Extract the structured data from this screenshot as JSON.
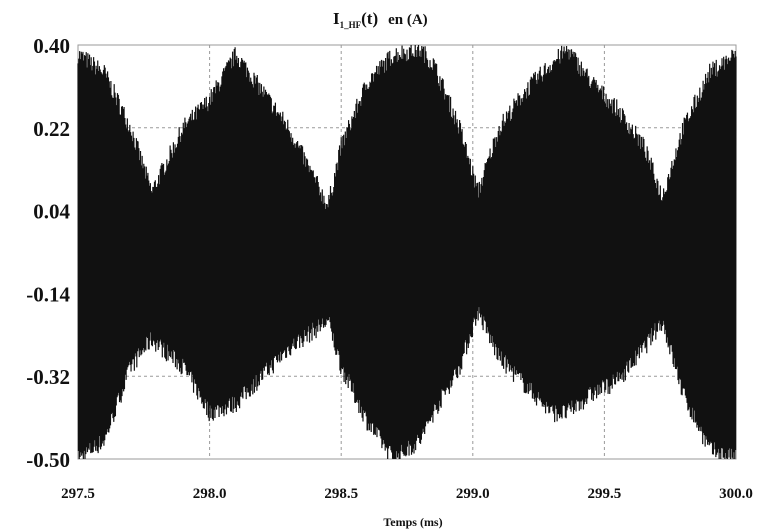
{
  "chart_data": {
    "type": "line",
    "title": {
      "main": "I",
      "subscript": "1_HF",
      "suffix": "(t)",
      "unit": "en (A)"
    },
    "xlabel": "Temps (ms)",
    "ylabel": "",
    "x_tick_labels": [
      "297.5",
      "298.0",
      "298.5",
      "299.0",
      "299.5",
      "300.0"
    ],
    "y_tick_labels": [
      "0.40",
      "0.22",
      "0.04",
      "-0.14",
      "-0.32",
      "-0.50"
    ],
    "xlim": [
      297.5,
      300.0
    ],
    "ylim": [
      -0.5,
      0.4
    ],
    "grid": true,
    "series": [
      {
        "color": "#111111",
        "description_envelope_x": [
          297.5,
          297.6,
          297.7,
          297.78,
          297.9,
          298.0,
          298.1,
          298.2,
          298.3,
          298.45,
          298.5,
          298.6,
          298.7,
          298.8,
          298.85,
          298.95,
          299.02,
          299.1,
          299.2,
          299.3,
          299.36,
          299.45,
          299.55,
          299.65,
          299.72,
          299.8,
          299.9,
          300.0
        ],
        "upper_envelope": [
          0.38,
          0.34,
          0.22,
          0.08,
          0.22,
          0.28,
          0.38,
          0.3,
          0.22,
          0.05,
          0.18,
          0.32,
          0.38,
          0.39,
          0.36,
          0.22,
          0.08,
          0.22,
          0.3,
          0.36,
          0.39,
          0.32,
          0.26,
          0.18,
          0.07,
          0.22,
          0.34,
          0.38
        ],
        "lower_envelope": [
          -0.5,
          -0.46,
          -0.3,
          -0.24,
          -0.3,
          -0.4,
          -0.38,
          -0.32,
          -0.26,
          -0.2,
          -0.3,
          -0.42,
          -0.5,
          -0.46,
          -0.4,
          -0.3,
          -0.18,
          -0.28,
          -0.34,
          -0.4,
          -0.4,
          -0.36,
          -0.33,
          -0.26,
          -0.2,
          -0.36,
          -0.48,
          -0.5
        ]
      }
    ]
  }
}
